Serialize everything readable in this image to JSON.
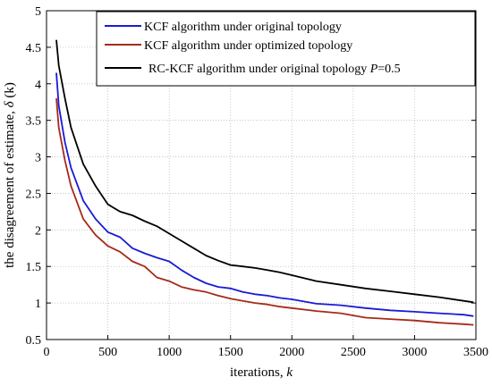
{
  "chart_data": {
    "type": "line",
    "title": "",
    "xlabel": "iterations, k",
    "xlabel_parts": [
      "iterations, ",
      "k"
    ],
    "ylabel": "the disagreement of estimate, δ (k)",
    "ylabel_parts": [
      "the disagreement of estimate, ",
      "δ",
      " (k)"
    ],
    "xlim": [
      0,
      3500
    ],
    "ylim": [
      0.5,
      5
    ],
    "xticks": [
      0,
      500,
      1000,
      1500,
      2000,
      2500,
      3000,
      3500
    ],
    "yticks": [
      0.5,
      1,
      1.5,
      2,
      2.5,
      3,
      3.5,
      4,
      4.5,
      5
    ],
    "xtick_labels": [
      "0",
      "500",
      "1000",
      "1500",
      "2000",
      "2500",
      "3000",
      "3500"
    ],
    "ytick_labels": [
      "0.5",
      "1",
      "1.5",
      "2",
      "2.5",
      "3",
      "3.5",
      "4",
      "4.5",
      "5"
    ],
    "grid": true,
    "legend_position": "top-right",
    "series": [
      {
        "name": "KCF algorithm under original topology",
        "color": "#1a1ad6",
        "x": [
          80,
          100,
          150,
          200,
          300,
          400,
          500,
          600,
          700,
          800,
          900,
          1000,
          1100,
          1200,
          1300,
          1400,
          1500,
          1600,
          1700,
          1800,
          1900,
          2000,
          2200,
          2400,
          2600,
          2800,
          3000,
          3200,
          3400,
          3480
        ],
        "y": [
          4.15,
          3.7,
          3.2,
          2.85,
          2.4,
          2.15,
          1.97,
          1.9,
          1.75,
          1.68,
          1.62,
          1.57,
          1.45,
          1.35,
          1.27,
          1.22,
          1.2,
          1.15,
          1.12,
          1.1,
          1.07,
          1.05,
          0.99,
          0.97,
          0.93,
          0.9,
          0.88,
          0.86,
          0.84,
          0.82
        ]
      },
      {
        "name": "KCF algorithm under optimized topology",
        "color": "#a52a1a",
        "x": [
          80,
          100,
          150,
          200,
          300,
          400,
          500,
          600,
          700,
          800,
          900,
          1000,
          1100,
          1200,
          1300,
          1400,
          1500,
          1600,
          1700,
          1800,
          1900,
          2000,
          2200,
          2400,
          2600,
          2800,
          3000,
          3200,
          3400,
          3480
        ],
        "y": [
          3.8,
          3.4,
          2.95,
          2.6,
          2.15,
          1.93,
          1.78,
          1.7,
          1.57,
          1.5,
          1.35,
          1.3,
          1.22,
          1.18,
          1.15,
          1.1,
          1.06,
          1.03,
          1.0,
          0.98,
          0.95,
          0.93,
          0.89,
          0.86,
          0.8,
          0.78,
          0.76,
          0.73,
          0.71,
          0.7
        ]
      },
      {
        "name": "RC-KCF algorithm under original topology P=0.5",
        "name_parts": [
          "RC-KCF algorithm under original topology ",
          "P",
          "=0.5"
        ],
        "color": "#000000",
        "x": [
          80,
          100,
          150,
          200,
          300,
          400,
          500,
          600,
          700,
          800,
          900,
          1000,
          1100,
          1200,
          1300,
          1400,
          1500,
          1600,
          1700,
          1800,
          1900,
          2000,
          2200,
          2400,
          2600,
          2800,
          3000,
          3200,
          3400,
          3480
        ],
        "y": [
          4.6,
          4.25,
          3.8,
          3.4,
          2.9,
          2.6,
          2.35,
          2.25,
          2.2,
          2.12,
          2.05,
          1.95,
          1.85,
          1.75,
          1.65,
          1.58,
          1.52,
          1.5,
          1.48,
          1.45,
          1.42,
          1.38,
          1.3,
          1.25,
          1.2,
          1.16,
          1.12,
          1.08,
          1.03,
          1.01
        ]
      }
    ]
  }
}
